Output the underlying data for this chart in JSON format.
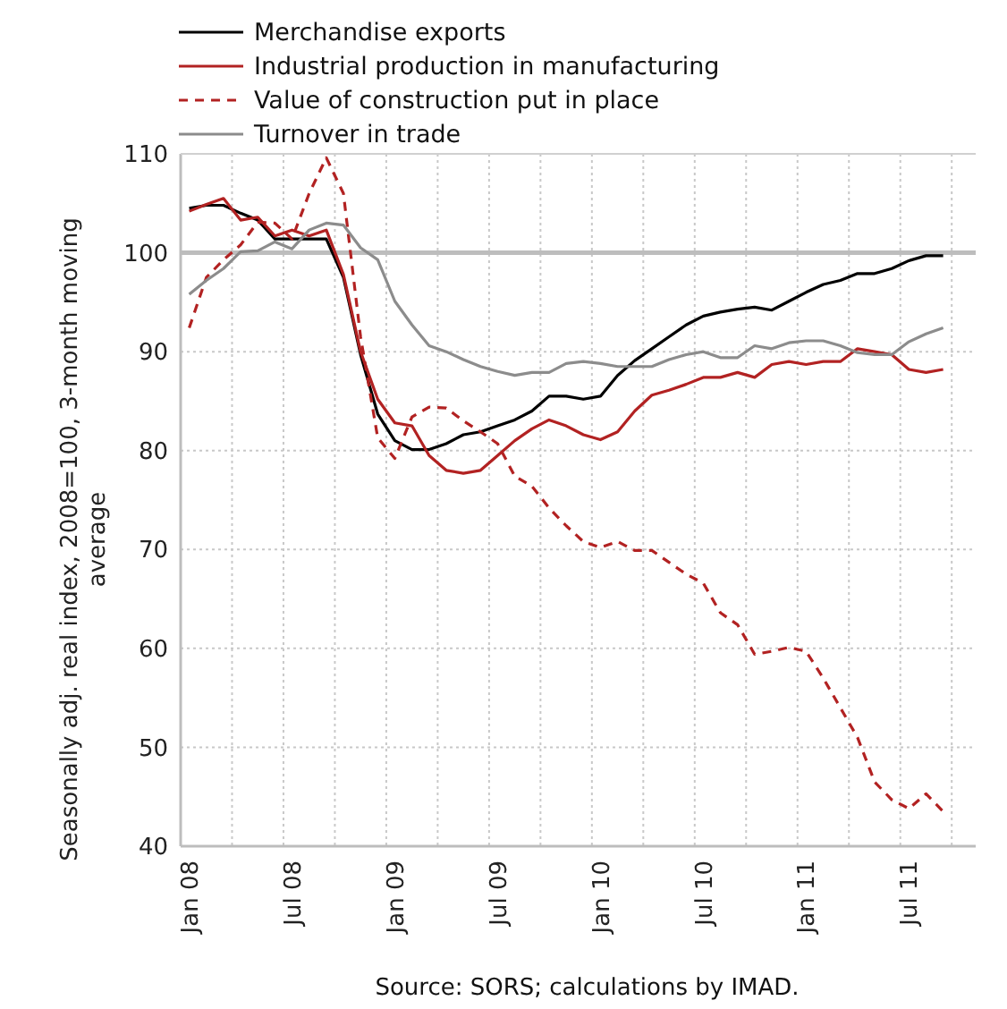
{
  "chart_data": {
    "type": "line",
    "ylabel": "Seasonally adj. real index, 2008=100, 3-month moving average",
    "annotations": [
      "Source: SORS; calculations by IMAD."
    ],
    "categories": [
      "Jan 08",
      null,
      null,
      null,
      null,
      null,
      "Jul 08",
      null,
      null,
      null,
      null,
      null,
      "Jan 09",
      null,
      null,
      null,
      null,
      null,
      "Jul 09",
      null,
      null,
      null,
      null,
      null,
      "Jan 10",
      null,
      null,
      null,
      null,
      null,
      "Jul 10",
      null,
      null,
      null,
      null,
      null,
      "Jan 11",
      null,
      null,
      null,
      null,
      null,
      "Jul 11",
      null,
      null
    ],
    "ylim": [
      40,
      110
    ],
    "yticks": [
      40,
      50,
      60,
      70,
      80,
      90,
      100,
      110
    ],
    "grid": true,
    "legend": "top",
    "line_style": "solid",
    "marker": "none",
    "ref_lines": [
      {
        "axis": "y",
        "value": 100,
        "color": "#bdbdbd"
      }
    ],
    "series": [
      {
        "name": "Merchandise exports",
        "color": "#000000",
        "values": [
          104.5,
          104.8,
          104.8,
          104,
          103.3,
          101.4,
          101.4,
          101.4,
          101.4,
          97.5,
          89.7,
          83.7,
          81,
          80.1,
          80.1,
          80.7,
          81.6,
          81.9,
          82.5,
          83.1,
          84,
          85.5,
          85.5,
          85.2,
          85.5,
          87.6,
          89.1,
          90.3,
          91.5,
          92.7,
          93.6,
          94,
          94.3,
          94.5,
          94.2,
          95.1,
          96,
          96.8,
          97.2,
          97.9,
          97.9,
          98.4,
          99.2,
          99.7,
          99.7
        ]
      },
      {
        "name": "Industrial production in manufacturing",
        "color": "#b22222",
        "values": [
          104.2,
          104.9,
          105.5,
          103.3,
          103.6,
          101.7,
          102.3,
          101.7,
          102.3,
          97.8,
          90,
          85.2,
          82.8,
          82.5,
          79.5,
          78,
          77.7,
          78,
          79.5,
          81,
          82.2,
          83.1,
          82.5,
          81.6,
          81.1,
          81.9,
          84,
          85.6,
          86.1,
          86.7,
          87.4,
          87.4,
          87.9,
          87.4,
          88.7,
          89,
          88.7,
          89,
          89,
          90.3,
          90,
          89.7,
          88.2,
          87.9,
          88.2
        ]
      },
      {
        "name": "Value of construction put in place",
        "color": "#b22222",
        "line_style": "dashed",
        "values": [
          92.4,
          97.5,
          99.3,
          100.8,
          103.1,
          103,
          101.4,
          106,
          109.6,
          106,
          91.5,
          81.3,
          79.2,
          83.4,
          84.4,
          84.3,
          83,
          81.9,
          80.7,
          77.4,
          76.4,
          74.2,
          72.4,
          70.8,
          70.2,
          70.8,
          69.9,
          69.9,
          68.7,
          67.5,
          66.6,
          63.6,
          62.4,
          59.4,
          59.7,
          60.1,
          59.7,
          57,
          54,
          51,
          46.5,
          44.7,
          43.8,
          45.3,
          43.5
        ]
      },
      {
        "name": "Turnover in trade",
        "color": "#8c8c8c",
        "values": [
          95.8,
          97.2,
          98.4,
          100.1,
          100.2,
          101.1,
          100.4,
          102.3,
          103,
          102.8,
          100.5,
          99.3,
          95.1,
          92.7,
          90.6,
          90,
          89.2,
          88.5,
          88,
          87.6,
          87.9,
          87.9,
          88.8,
          89,
          88.8,
          88.5,
          88.5,
          88.5,
          89.2,
          89.7,
          90,
          89.4,
          89.4,
          90.6,
          90.3,
          90.9,
          91.1,
          91.1,
          90.6,
          89.9,
          89.7,
          89.7,
          91,
          91.8,
          92.4
        ]
      }
    ]
  }
}
